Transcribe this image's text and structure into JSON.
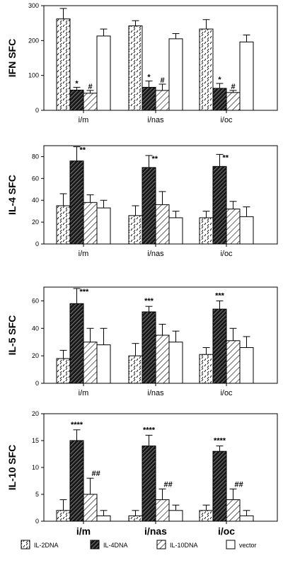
{
  "legend": [
    {
      "name": "IL-2DNA",
      "pattern": "dashed"
    },
    {
      "name": "IL-4DNA",
      "pattern": "dark-hatched"
    },
    {
      "name": "IL-10DNA",
      "pattern": "diagonal"
    },
    {
      "name": "vector",
      "pattern": "white"
    }
  ],
  "chart_data": [
    {
      "type": "bar",
      "ylabel": "IFN  SFC",
      "categories": [
        "i/m",
        "i/nas",
        "i/oc"
      ],
      "ylim": [
        0,
        300
      ],
      "yticks": [
        0,
        100,
        200,
        300
      ],
      "series": [
        {
          "name": "IL-2DNA",
          "values": [
            262,
            242,
            233
          ],
          "errors": [
            30,
            15,
            27
          ]
        },
        {
          "name": "IL-4DNA",
          "values": [
            58,
            66,
            63
          ],
          "errors": [
            8,
            18,
            14
          ]
        },
        {
          "name": "IL-10DNA",
          "values": [
            49,
            57,
            51
          ],
          "errors": [
            8,
            18,
            6
          ]
        },
        {
          "name": "vector",
          "values": [
            213,
            205,
            196
          ],
          "errors": [
            20,
            15,
            20
          ]
        }
      ],
      "annotations": [
        {
          "category": 0,
          "series": 1,
          "text": "*"
        },
        {
          "category": 0,
          "series": 2,
          "text": "#"
        },
        {
          "category": 1,
          "series": 1,
          "text": "*"
        },
        {
          "category": 1,
          "series": 2,
          "text": "#"
        },
        {
          "category": 2,
          "series": 1,
          "text": "*"
        },
        {
          "category": 2,
          "series": 2,
          "text": "#"
        }
      ]
    },
    {
      "type": "bar",
      "ylabel": "IL-4  SFC",
      "categories": [
        "i/m",
        "i/nas",
        "i/oc"
      ],
      "ylim": [
        0,
        90
      ],
      "yticks": [
        0,
        20,
        40,
        60,
        80
      ],
      "series": [
        {
          "name": "IL-2DNA",
          "values": [
            35,
            26,
            24
          ],
          "errors": [
            11,
            9,
            6
          ]
        },
        {
          "name": "IL-4DNA",
          "values": [
            76,
            70,
            71
          ],
          "errors": [
            13,
            11,
            11
          ]
        },
        {
          "name": "IL-10DNA",
          "values": [
            38,
            36,
            32
          ],
          "errors": [
            7,
            12,
            7
          ]
        },
        {
          "name": "vector",
          "values": [
            33,
            24,
            25
          ],
          "errors": [
            7,
            6,
            9
          ]
        }
      ],
      "annotations": [
        {
          "category": 0,
          "series": 1,
          "text": "**"
        },
        {
          "category": 1,
          "series": 1,
          "text": "**"
        },
        {
          "category": 2,
          "series": 1,
          "text": "**"
        }
      ]
    },
    {
      "type": "bar",
      "ylabel": "IL-5  SFC",
      "categories": [
        "i/m",
        "i/nas",
        "i/oc"
      ],
      "ylim": [
        0,
        70
      ],
      "yticks": [
        0,
        20,
        40,
        60
      ],
      "series": [
        {
          "name": "IL-2DNA",
          "values": [
            18,
            20,
            21
          ],
          "errors": [
            6,
            9,
            5
          ]
        },
        {
          "name": "IL-4DNA",
          "values": [
            58,
            52,
            54
          ],
          "errors": [
            11,
            4,
            6
          ]
        },
        {
          "name": "IL-10DNA",
          "values": [
            30,
            35,
            31
          ],
          "errors": [
            10,
            8,
            9
          ]
        },
        {
          "name": "vector",
          "values": [
            28,
            30,
            26
          ],
          "errors": [
            12,
            8,
            8
          ]
        }
      ],
      "annotations": [
        {
          "category": 0,
          "series": 1,
          "text": "***"
        },
        {
          "category": 1,
          "series": 1,
          "text": "***"
        },
        {
          "category": 2,
          "series": 1,
          "text": "***"
        }
      ]
    },
    {
      "type": "bar",
      "ylabel": "IL-10  SFC",
      "categories": [
        "i/m",
        "i/nas",
        "i/oc"
      ],
      "category_style": "large",
      "ylim": [
        0,
        20
      ],
      "yticks": [
        0,
        5,
        10,
        15,
        20
      ],
      "series": [
        {
          "name": "IL-2DNA",
          "values": [
            2,
            1,
            2
          ],
          "errors": [
            2,
            1,
            1
          ]
        },
        {
          "name": "IL-4DNA",
          "values": [
            15,
            14,
            13
          ],
          "errors": [
            2,
            2,
            1
          ]
        },
        {
          "name": "IL-10DNA",
          "values": [
            5,
            4,
            4
          ],
          "errors": [
            3,
            2,
            2
          ]
        },
        {
          "name": "vector",
          "values": [
            1,
            2,
            1
          ],
          "errors": [
            1,
            1,
            1
          ]
        }
      ],
      "annotations": [
        {
          "category": 0,
          "series": 1,
          "text": "****"
        },
        {
          "category": 0,
          "series": 2,
          "text": "##"
        },
        {
          "category": 1,
          "series": 1,
          "text": "****"
        },
        {
          "category": 1,
          "series": 2,
          "text": "##"
        },
        {
          "category": 2,
          "series": 1,
          "text": "****"
        },
        {
          "category": 2,
          "series": 2,
          "text": "##"
        }
      ]
    }
  ]
}
